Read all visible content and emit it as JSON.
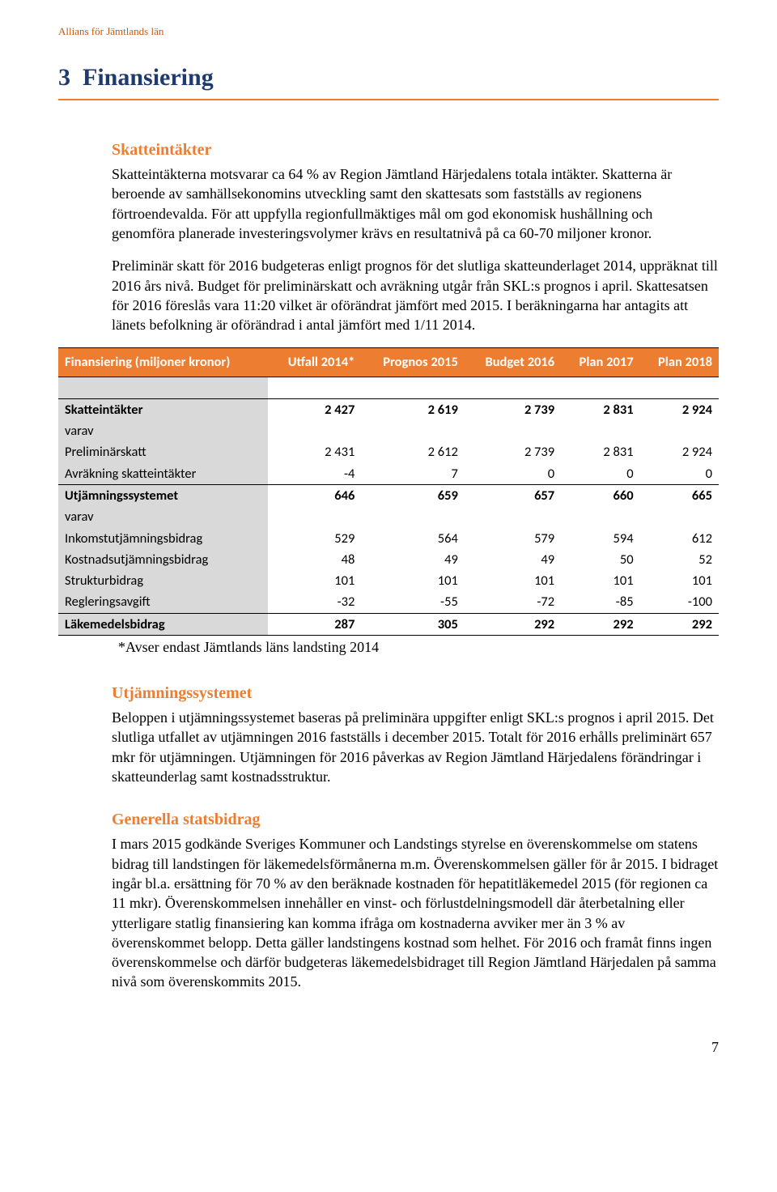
{
  "header": {
    "text": "Allians för Jämtlands län",
    "color": "#c65a11"
  },
  "section": {
    "number": "3",
    "title": "Finansiering",
    "title_color": "#1f3a6e",
    "rule_color": "#ed7d31"
  },
  "sub1": {
    "heading": "Skatteintäkter",
    "heading_color": "#ed7d31",
    "para1": "Skatteintäkterna motsvarar ca 64 % av Region Jämtland Härjedalens totala intäkter. Skatterna är beroende av samhällsekonomins utveckling samt den skattesats som fastställs av regionens förtroendevalda. För att uppfylla regionfullmäktiges mål om god ekonomisk hushållning och genomföra planerade investeringsvolymer krävs en resultatnivå på ca 60-70 miljoner kronor.",
    "para2": "Preliminär skatt för 2016 budgeteras enligt prognos för det slutliga skatteunderlaget 2014, uppräknat till 2016 års nivå. Budget för preliminärskatt och avräkning utgår från SKL:s prognos i april. Skattesatsen för 2016 föreslås vara 11:20 vilket är oförändrat jämfört med 2015. I beräkningarna har antagits att länets befolkning är oförändrad i antal jämfört med 1/11 2014."
  },
  "table": {
    "header_bg": "#ed7d31",
    "label_col_bg": "#d9d9d9",
    "columns": [
      "Finansiering (miljoner kronor)",
      "Utfall 2014*",
      "Prognos 2015",
      "Budget 2016",
      "Plan 2017",
      "Plan 2018"
    ],
    "rows": [
      {
        "label": "Skatteintäkter",
        "vals": [
          "2 427",
          "2 619",
          "2 739",
          "2 831",
          "2 924"
        ],
        "bold": true,
        "top_border": true,
        "spacer_before": true
      },
      {
        "label": "varav",
        "vals": [
          "",
          "",
          "",
          "",
          ""
        ],
        "bold": false
      },
      {
        "label": "Preliminärskatt",
        "vals": [
          "2 431",
          "2 612",
          "2 739",
          "2 831",
          "2 924"
        ],
        "bold": false
      },
      {
        "label": "Avräkning skatteintäkter",
        "vals": [
          "-4",
          "7",
          "0",
          "0",
          "0"
        ],
        "bold": false
      },
      {
        "label": "Utjämningssystemet",
        "vals": [
          "646",
          "659",
          "657",
          "660",
          "665"
        ],
        "bold": true,
        "top_border": true
      },
      {
        "label": "varav",
        "vals": [
          "",
          "",
          "",
          "",
          ""
        ],
        "bold": false
      },
      {
        "label": "Inkomstutjämningsbidrag",
        "vals": [
          "529",
          "564",
          "579",
          "594",
          "612"
        ],
        "bold": false
      },
      {
        "label": "Kostnadsutjämningsbidrag",
        "vals": [
          "48",
          "49",
          "49",
          "50",
          "52"
        ],
        "bold": false
      },
      {
        "label": "Strukturbidrag",
        "vals": [
          "101",
          "101",
          "101",
          "101",
          "101"
        ],
        "bold": false
      },
      {
        "label": "Regleringsavgift",
        "vals": [
          "-32",
          "-55",
          "-72",
          "-85",
          "-100"
        ],
        "bold": false
      },
      {
        "label": "Läkemedelsbidrag",
        "vals": [
          "287",
          "305",
          "292",
          "292",
          "292"
        ],
        "bold": true,
        "top_border": true,
        "bottom_border": true
      }
    ],
    "footnote": "*Avser endast Jämtlands läns landsting 2014"
  },
  "sub2": {
    "heading": "Utjämningssystemet",
    "heading_color": "#ed7d31",
    "para": "Beloppen i utjämningssystemet baseras på preliminära uppgifter enligt SKL:s prognos i april 2015. Det slutliga utfallet av utjämningen 2016 fastställs i december 2015. Totalt för 2016 erhålls preliminärt 657 mkr för utjämningen. Utjämningen för 2016 påverkas av Region Jämtland Härjedalens förändringar i skatteunderlag samt kostnadsstruktur."
  },
  "sub3": {
    "heading": "Generella statsbidrag",
    "heading_color": "#ed7d31",
    "para": "I mars 2015 godkände Sveriges Kommuner och Landstings styrelse en överenskommelse om statens bidrag till landstingen för läkemedelsförmånerna m.m. Överenskommelsen gäller för år 2015. I bidraget ingår bl.a. ersättning för 70 % av den beräknade kostnaden för hepatitläkemedel 2015 (för regionen ca 11 mkr). Överenskommelsen innehåller en vinst- och förlustdelningsmodell där återbetalning eller ytterligare statlig finansiering kan komma ifråga om kostnaderna avviker mer än 3 % av överenskommet belopp. Detta gäller landstingens kostnad som helhet. För 2016 och framåt finns ingen överenskommelse och därför budgeteras läkemedelsbidraget till Region Jämtland Härjedalen på samma nivå som överenskommits 2015."
  },
  "page_number": "7"
}
